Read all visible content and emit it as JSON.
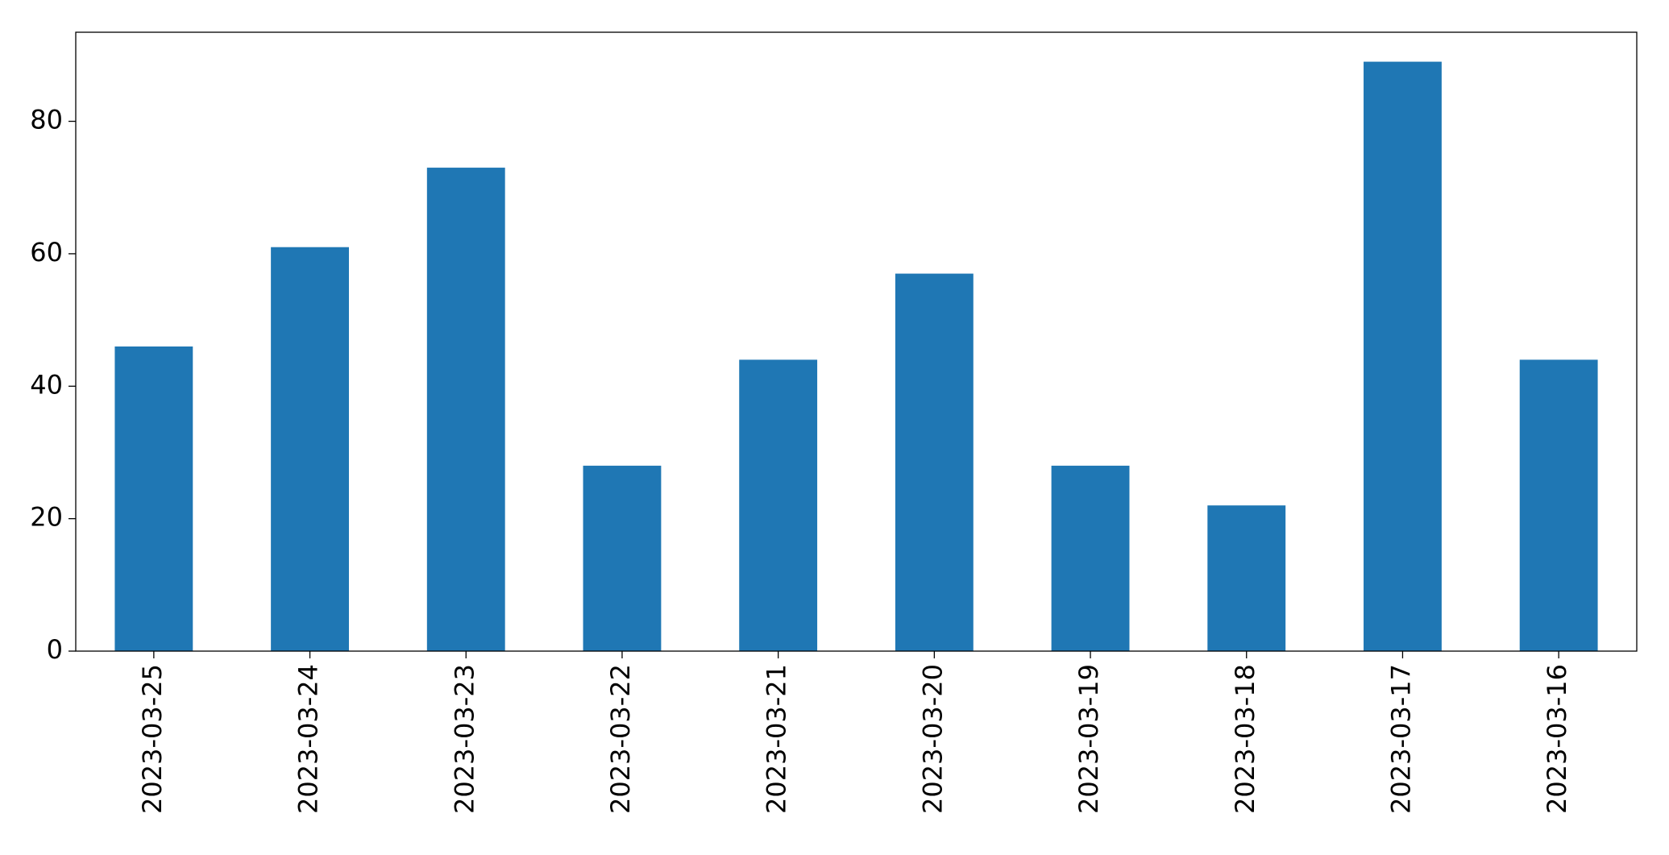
{
  "chart_data": {
    "type": "bar",
    "categories": [
      "2023-03-25",
      "2023-03-24",
      "2023-03-23",
      "2023-03-22",
      "2023-03-21",
      "2023-03-20",
      "2023-03-19",
      "2023-03-18",
      "2023-03-17",
      "2023-03-16"
    ],
    "values": [
      46,
      61,
      73,
      28,
      44,
      57,
      28,
      22,
      89,
      44
    ],
    "color": "#1f77b4",
    "ylim": [
      0,
      93.45
    ],
    "yticks": [
      0,
      20,
      40,
      60,
      80
    ],
    "grid": false
  }
}
